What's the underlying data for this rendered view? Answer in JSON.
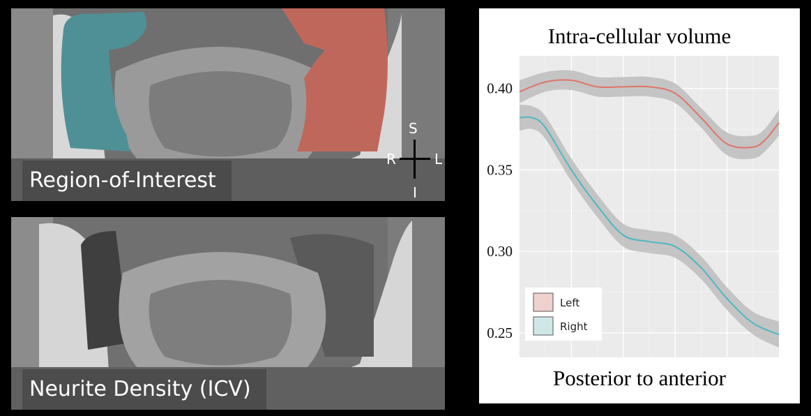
{
  "panels": {
    "top_label": "Region-of-Interest",
    "bottom_label": "Neurite Density (ICV)",
    "orientation": {
      "superior": "S",
      "inferior": "I",
      "right": "R",
      "left": "L"
    },
    "colors": {
      "left_roi": "#c0675c",
      "right_roi": "#4f9096"
    }
  },
  "chart_data": {
    "type": "line",
    "title": "Intra-cellular volume",
    "xlabel": "Posterior to anterior",
    "ylabel": "",
    "ylim": [
      0.235,
      0.42
    ],
    "yticks": [
      0.25,
      0.3,
      0.35,
      0.4
    ],
    "ytick_labels": [
      "0.25",
      "0.30",
      "0.35",
      "0.40"
    ],
    "xlim": [
      0,
      1
    ],
    "grid": true,
    "legend_position": "bottom-left",
    "band_color": "#bdbdbd",
    "series": [
      {
        "name": "Left",
        "color": "#e07468",
        "fill": "#efd1cd",
        "x": [
          0.0,
          0.1,
          0.2,
          0.3,
          0.4,
          0.5,
          0.6,
          0.7,
          0.8,
          0.9,
          0.95,
          1.0
        ],
        "y": [
          0.398,
          0.404,
          0.405,
          0.401,
          0.401,
          0.401,
          0.397,
          0.382,
          0.366,
          0.364,
          0.369,
          0.379
        ],
        "band": [
          0.007,
          0.006,
          0.006,
          0.006,
          0.006,
          0.006,
          0.006,
          0.006,
          0.007,
          0.007,
          0.007,
          0.008
        ]
      },
      {
        "name": "Right",
        "color": "#4cb8c0",
        "fill": "#d0e7e8",
        "x": [
          0.0,
          0.05,
          0.1,
          0.2,
          0.3,
          0.4,
          0.5,
          0.6,
          0.7,
          0.8,
          0.9,
          1.0
        ],
        "y": [
          0.382,
          0.382,
          0.376,
          0.35,
          0.328,
          0.31,
          0.306,
          0.303,
          0.29,
          0.271,
          0.256,
          0.249
        ],
        "band": [
          0.008,
          0.007,
          0.007,
          0.007,
          0.007,
          0.007,
          0.007,
          0.007,
          0.007,
          0.007,
          0.007,
          0.008
        ]
      }
    ]
  }
}
